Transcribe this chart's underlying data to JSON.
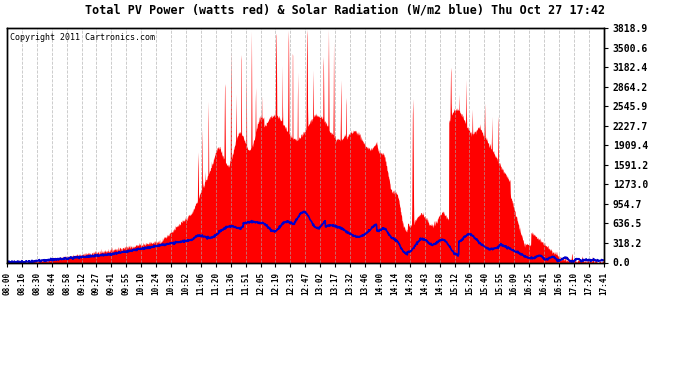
{
  "title": "Total PV Power (watts red) & Solar Radiation (W/m2 blue) Thu Oct 27 17:42",
  "copyright_text": "Copyright 2011 Cartronics.com",
  "background_color": "#ffffff",
  "plot_bg_color": "#ffffff",
  "grid_color": "#aaaaaa",
  "y_max": 3818.9,
  "y_min": 0.0,
  "y_ticks": [
    0.0,
    318.2,
    636.5,
    954.7,
    1273.0,
    1591.2,
    1909.4,
    2227.7,
    2545.9,
    2864.2,
    3182.4,
    3500.6,
    3818.9
  ],
  "pv_color": "#ff0000",
  "solar_color": "#0000cc",
  "x_labels": [
    "08:00",
    "08:16",
    "08:30",
    "08:44",
    "08:58",
    "09:12",
    "09:27",
    "09:41",
    "09:55",
    "10:10",
    "10:24",
    "10:38",
    "10:52",
    "11:06",
    "11:20",
    "11:36",
    "11:51",
    "12:05",
    "12:19",
    "12:33",
    "12:47",
    "13:02",
    "13:17",
    "13:32",
    "13:46",
    "14:00",
    "14:14",
    "14:28",
    "14:43",
    "14:58",
    "15:12",
    "15:26",
    "15:40",
    "15:55",
    "16:09",
    "16:25",
    "16:41",
    "16:56",
    "17:10",
    "17:26",
    "17:41"
  ],
  "total_minutes": 581
}
